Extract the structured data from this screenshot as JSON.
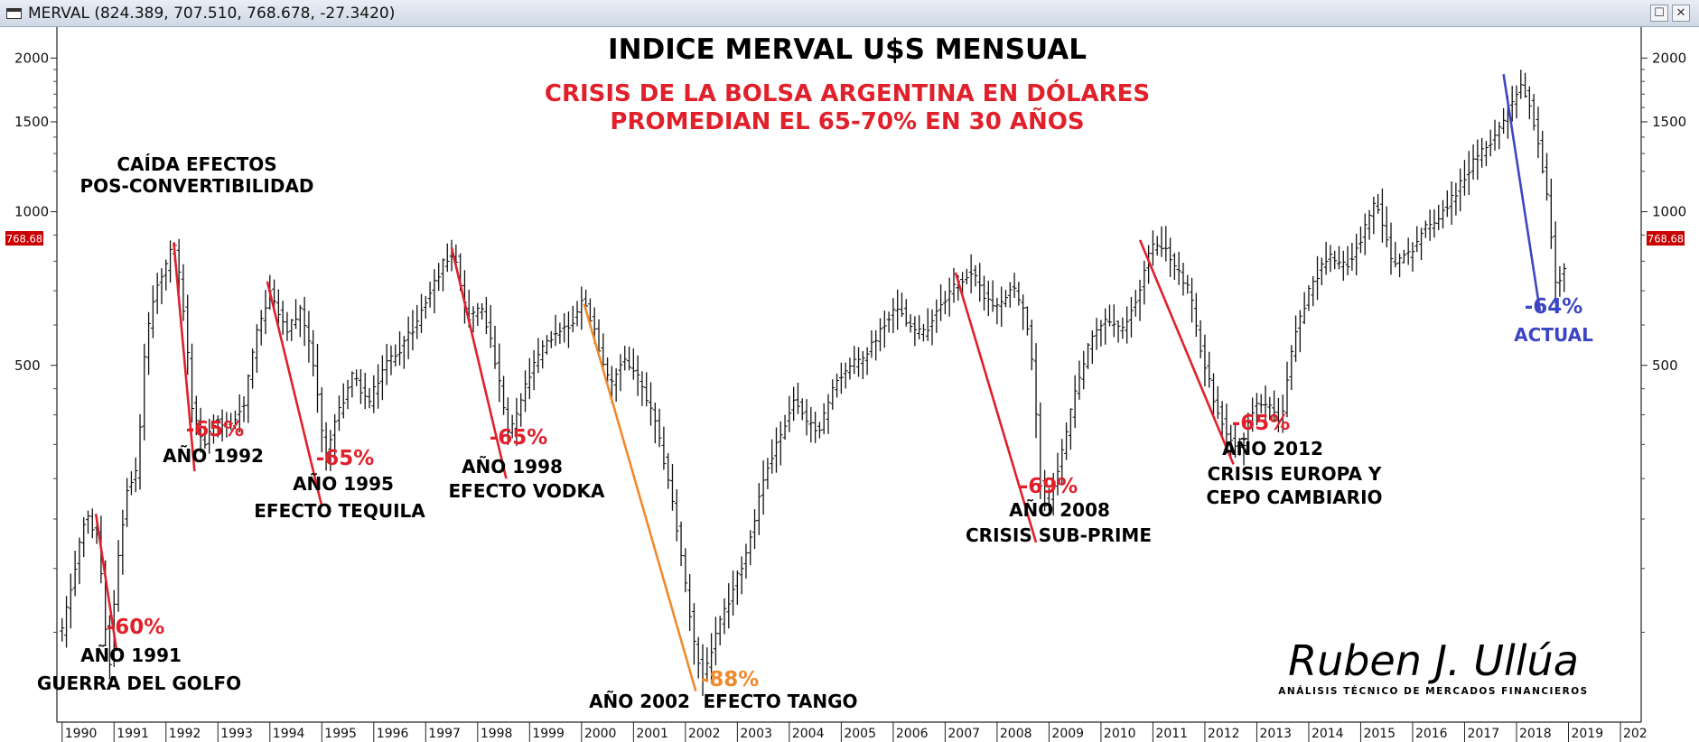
{
  "window": {
    "title": "MERVAL (824.389, 707.510, 768.678, -27.3420)"
  },
  "icons": {
    "window": "chart-window-icon",
    "maximize": "maximize-icon",
    "close": "close-icon"
  },
  "colors": {
    "red": "#e0202a",
    "orange": "#ef8a2c",
    "blue": "#3d46c2",
    "bars": "#111111",
    "badge_bg": "#c80000",
    "badge_fg": "#ffffff"
  },
  "chart_data": {
    "type": "ohlc",
    "title": "INDICE MERVAL U$S MENSUAL",
    "subtitle_lines": [
      "CRISIS DE LA BOLSA ARGENTINA EN DÓLARES",
      "PROMEDIAN EL 65-70% EN 30 AÑOS"
    ],
    "y_scale": "log",
    "ylim": [
      100,
      2300
    ],
    "x_range": [
      1989.9,
      2020.4
    ],
    "y_ticks": [
      2000,
      1500,
      1000,
      500
    ],
    "x_ticks": [
      "1990",
      "1991",
      "1992",
      "1993",
      "1994",
      "1995",
      "1996",
      "1997",
      "1998",
      "1999",
      "2000",
      "2001",
      "2002",
      "2003",
      "2004",
      "2005",
      "2006",
      "2007",
      "2008",
      "2009",
      "2010",
      "2011",
      "2012",
      "2013",
      "2014",
      "2015",
      "2016",
      "2017",
      "2018",
      "2019",
      "202"
    ],
    "last_price_badge": "768.68",
    "price_path": [
      [
        1990.0,
        150
      ],
      [
        1990.2,
        190
      ],
      [
        1990.45,
        255
      ],
      [
        1990.7,
        230
      ],
      [
        1990.9,
        125
      ],
      [
        1991.05,
        200
      ],
      [
        1991.25,
        290
      ],
      [
        1991.45,
        310
      ],
      [
        1991.6,
        560
      ],
      [
        1991.8,
        700
      ],
      [
        1992.0,
        780
      ],
      [
        1992.15,
        870
      ],
      [
        1992.3,
        700
      ],
      [
        1992.5,
        420
      ],
      [
        1992.7,
        345
      ],
      [
        1992.95,
        390
      ],
      [
        1993.2,
        380
      ],
      [
        1993.5,
        420
      ],
      [
        1993.75,
        580
      ],
      [
        1994.0,
        700
      ],
      [
        1994.3,
        580
      ],
      [
        1994.6,
        640
      ],
      [
        1994.85,
        500
      ],
      [
        1995.05,
        330
      ],
      [
        1995.3,
        400
      ],
      [
        1995.6,
        480
      ],
      [
        1995.9,
        420
      ],
      [
        1996.2,
        500
      ],
      [
        1996.5,
        540
      ],
      [
        1996.8,
        600
      ],
      [
        1997.1,
        700
      ],
      [
        1997.35,
        800
      ],
      [
        1997.55,
        840
      ],
      [
        1997.8,
        620
      ],
      [
        1998.1,
        650
      ],
      [
        1998.35,
        500
      ],
      [
        1998.6,
        360
      ],
      [
        1998.9,
        450
      ],
      [
        1999.2,
        530
      ],
      [
        1999.5,
        580
      ],
      [
        1999.8,
        600
      ],
      [
        2000.05,
        680
      ],
      [
        2000.3,
        560
      ],
      [
        2000.55,
        450
      ],
      [
        2000.8,
        520
      ],
      [
        2001.1,
        470
      ],
      [
        2001.4,
        390
      ],
      [
        2001.7,
        290
      ],
      [
        2001.95,
        200
      ],
      [
        2002.2,
        135
      ],
      [
        2002.35,
        122
      ],
      [
        2002.6,
        150
      ],
      [
        2002.9,
        180
      ],
      [
        2003.2,
        220
      ],
      [
        2003.5,
        300
      ],
      [
        2003.8,
        360
      ],
      [
        2004.1,
        430
      ],
      [
        2004.35,
        380
      ],
      [
        2004.6,
        380
      ],
      [
        2004.9,
        470
      ],
      [
        2005.2,
        500
      ],
      [
        2005.5,
        530
      ],
      [
        2005.8,
        600
      ],
      [
        2006.1,
        660
      ],
      [
        2006.35,
        590
      ],
      [
        2006.6,
        580
      ],
      [
        2006.9,
        660
      ],
      [
        2007.2,
        720
      ],
      [
        2007.5,
        760
      ],
      [
        2007.75,
        690
      ],
      [
        2008.0,
        650
      ],
      [
        2008.3,
        720
      ],
      [
        2008.55,
        620
      ],
      [
        2008.7,
        480
      ],
      [
        2008.82,
        300
      ],
      [
        2008.95,
        260
      ],
      [
        2009.2,
        320
      ],
      [
        2009.5,
        440
      ],
      [
        2009.8,
        560
      ],
      [
        2010.1,
        620
      ],
      [
        2010.4,
        580
      ],
      [
        2010.7,
        680
      ],
      [
        2010.95,
        850
      ],
      [
        2011.15,
        870
      ],
      [
        2011.45,
        770
      ],
      [
        2011.7,
        700
      ],
      [
        2011.95,
        520
      ],
      [
        2012.2,
        420
      ],
      [
        2012.45,
        360
      ],
      [
        2012.7,
        340
      ],
      [
        2012.95,
        420
      ],
      [
        2013.2,
        420
      ],
      [
        2013.45,
        380
      ],
      [
        2013.7,
        560
      ],
      [
        2014.0,
        700
      ],
      [
        2014.35,
        820
      ],
      [
        2014.7,
        780
      ],
      [
        2015.0,
        880
      ],
      [
        2015.3,
        1060
      ],
      [
        2015.6,
        800
      ],
      [
        2015.9,
        820
      ],
      [
        2016.2,
        920
      ],
      [
        2016.5,
        980
      ],
      [
        2016.8,
        1080
      ],
      [
        2017.1,
        1220
      ],
      [
        2017.4,
        1330
      ],
      [
        2017.65,
        1450
      ],
      [
        2017.9,
        1640
      ],
      [
        2018.05,
        1760
      ],
      [
        2018.2,
        1700
      ],
      [
        2018.4,
        1400
      ],
      [
        2018.6,
        1050
      ],
      [
        2018.75,
        720
      ],
      [
        2018.9,
        770
      ]
    ],
    "moves": [
      {
        "year": "AÑO 1991",
        "note": "GUERRA DEL GOLFO",
        "pct": "-60%",
        "color": "red",
        "x1": 1990.65,
        "y1": 256,
        "x2": 1991.05,
        "y2": 138
      },
      {
        "year": "AÑO 1992",
        "note": "",
        "pct": "-65%",
        "color": "red",
        "x1": 1992.15,
        "y1": 870,
        "x2": 1992.55,
        "y2": 310
      },
      {
        "year": "AÑO 1995",
        "note": "EFECTO TEQUILA",
        "pct": "-65%",
        "color": "red",
        "x1": 1993.95,
        "y1": 730,
        "x2": 1995.0,
        "y2": 265
      },
      {
        "year": "AÑO 1998",
        "note": "EFECTO VODKA",
        "pct": "-65%",
        "color": "red",
        "x1": 1997.5,
        "y1": 850,
        "x2": 1998.55,
        "y2": 300
      },
      {
        "year": "AÑO 2002",
        "note": "EFECTO TANGO",
        "pct": "-88%",
        "color": "orange",
        "x1": 2000.05,
        "y1": 660,
        "x2": 2002.2,
        "y2": 115
      },
      {
        "year": "AÑO 2008",
        "note": "CRISIS SUB-PRIME",
        "pct": "-69%",
        "color": "red",
        "x1": 2007.2,
        "y1": 760,
        "x2": 2008.75,
        "y2": 225
      },
      {
        "year": "AÑO 2012",
        "note": "CRISIS EUROPA Y|CEPO CAMBIARIO",
        "pct": "-65%",
        "color": "red",
        "x1": 2010.75,
        "y1": 880,
        "x2": 2012.55,
        "y2": 320
      },
      {
        "year": "ACTUAL",
        "note": "",
        "pct": "-64%",
        "color": "blue",
        "x1": 2017.75,
        "y1": 1860,
        "x2": 2018.45,
        "y2": 640
      }
    ],
    "annotations": {
      "caida_line1": "CAÍDA EFECTOS",
      "caida_line2": "POS-CONVERTIBILIDAD",
      "note_2012_line1": "CRISIS EUROPA Y",
      "note_2012_line2": "CEPO CAMBIARIO"
    },
    "signature": {
      "name": "Ruben J. Ullúa",
      "tagline": "ANÁLISIS TÉCNICO DE MERCADOS FINANCIEROS"
    }
  }
}
